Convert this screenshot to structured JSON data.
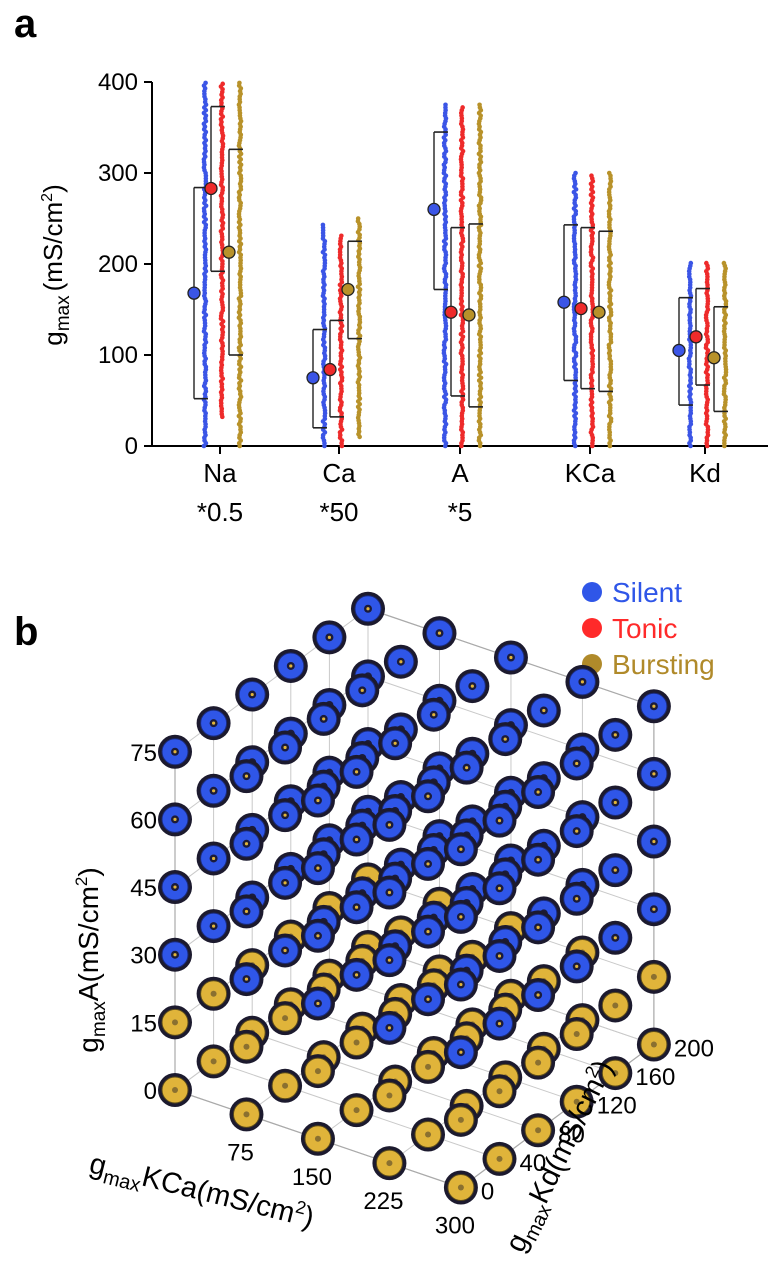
{
  "chart_data": [
    {
      "type": "scatter",
      "panel_label": "a",
      "title": "",
      "ylabel_main": "g",
      "ylabel_sub": "max",
      "ylabel_unit": "(mS/cm",
      "ylabel_sup": "2",
      "ylabel_close": ")",
      "ylim": [
        0,
        400
      ],
      "yticks": [
        "0",
        "100",
        "200",
        "300",
        "400"
      ],
      "categories": [
        {
          "name": "Na",
          "scale": "*0.5"
        },
        {
          "name": "Ca",
          "scale": "*50"
        },
        {
          "name": "A",
          "scale": "*5"
        },
        {
          "name": "KCa",
          "scale": ""
        },
        {
          "name": "Kd",
          "scale": ""
        }
      ],
      "colors": {
        "Silent": "#3b55e6",
        "Tonic": "#ee2b2b",
        "Bursting": "#b8922a"
      },
      "series": [
        {
          "name": "Silent",
          "mean": [
            168,
            75,
            260,
            158,
            105
          ],
          "sd_low": [
            52,
            20,
            172,
            72,
            45
          ],
          "sd_high": [
            284,
            128,
            345,
            243,
            163
          ],
          "range": [
            [
              0,
              400
            ],
            [
              0,
              245
            ],
            [
              0,
              377
            ],
            [
              0,
              302
            ],
            [
              0,
              202
            ]
          ]
        },
        {
          "name": "Tonic",
          "mean": [
            283,
            84,
            147,
            151,
            120
          ],
          "sd_low": [
            192,
            32,
            55,
            63,
            67
          ],
          "sd_high": [
            373,
            138,
            240,
            240,
            173
          ],
          "range": [
            [
              32,
              400
            ],
            [
              0,
              232
            ],
            [
              0,
              374
            ],
            [
              0,
              298
            ],
            [
              0,
              202
            ]
          ]
        },
        {
          "name": "Bursting",
          "mean": [
            213,
            172,
            144,
            147,
            97
          ],
          "sd_low": [
            100,
            118,
            43,
            60,
            38
          ],
          "sd_high": [
            326,
            225,
            244,
            236,
            153
          ],
          "range": [
            [
              0,
              400
            ],
            [
              10,
              250
            ],
            [
              0,
              377
            ],
            [
              0,
              302
            ],
            [
              0,
              202
            ]
          ]
        }
      ]
    },
    {
      "type": "scatter3d",
      "panel_label": "b",
      "title": "",
      "legend": [
        {
          "name": "Silent",
          "color": "#2f56e8"
        },
        {
          "name": "Tonic",
          "color": "#ff2a2a"
        },
        {
          "name": "Bursting",
          "color": "#b08a2a"
        }
      ],
      "legend_placement": "top-right",
      "z_axis": {
        "label_main": "g",
        "label_sub": "max",
        "label_rest": "A(mS/cm",
        "label_sup": "2",
        "label_close": ")",
        "ticks": [
          "0",
          "15",
          "30",
          "45",
          "60",
          "75"
        ],
        "range": [
          0,
          75
        ]
      },
      "x_axis": {
        "label_main": "g",
        "label_sub": "max",
        "label_rest": "KCa(mS/cm",
        "label_sup": "2",
        "label_close": ")",
        "ticks": [
          "75",
          "150",
          "225",
          "300"
        ],
        "range": [
          0,
          300
        ]
      },
      "y_axis": {
        "label_main": "g",
        "label_sub": "max",
        "label_rest": "Kd(mS/cm",
        "label_sup": "2",
        "label_close": ")",
        "ticks": [
          "0",
          "40",
          "80",
          "120",
          "160",
          "200"
        ],
        "range": [
          0,
          200
        ]
      },
      "grid": true,
      "layers": [
        {
          "A": 0,
          "class": "Bursting"
        },
        {
          "A": 15,
          "class": "Bursting"
        },
        {
          "A": 30,
          "class": "Silent"
        },
        {
          "A": 45,
          "class": "Silent"
        },
        {
          "A": 60,
          "class": "Silent"
        },
        {
          "A": 75,
          "class": "Silent"
        }
      ]
    }
  ]
}
